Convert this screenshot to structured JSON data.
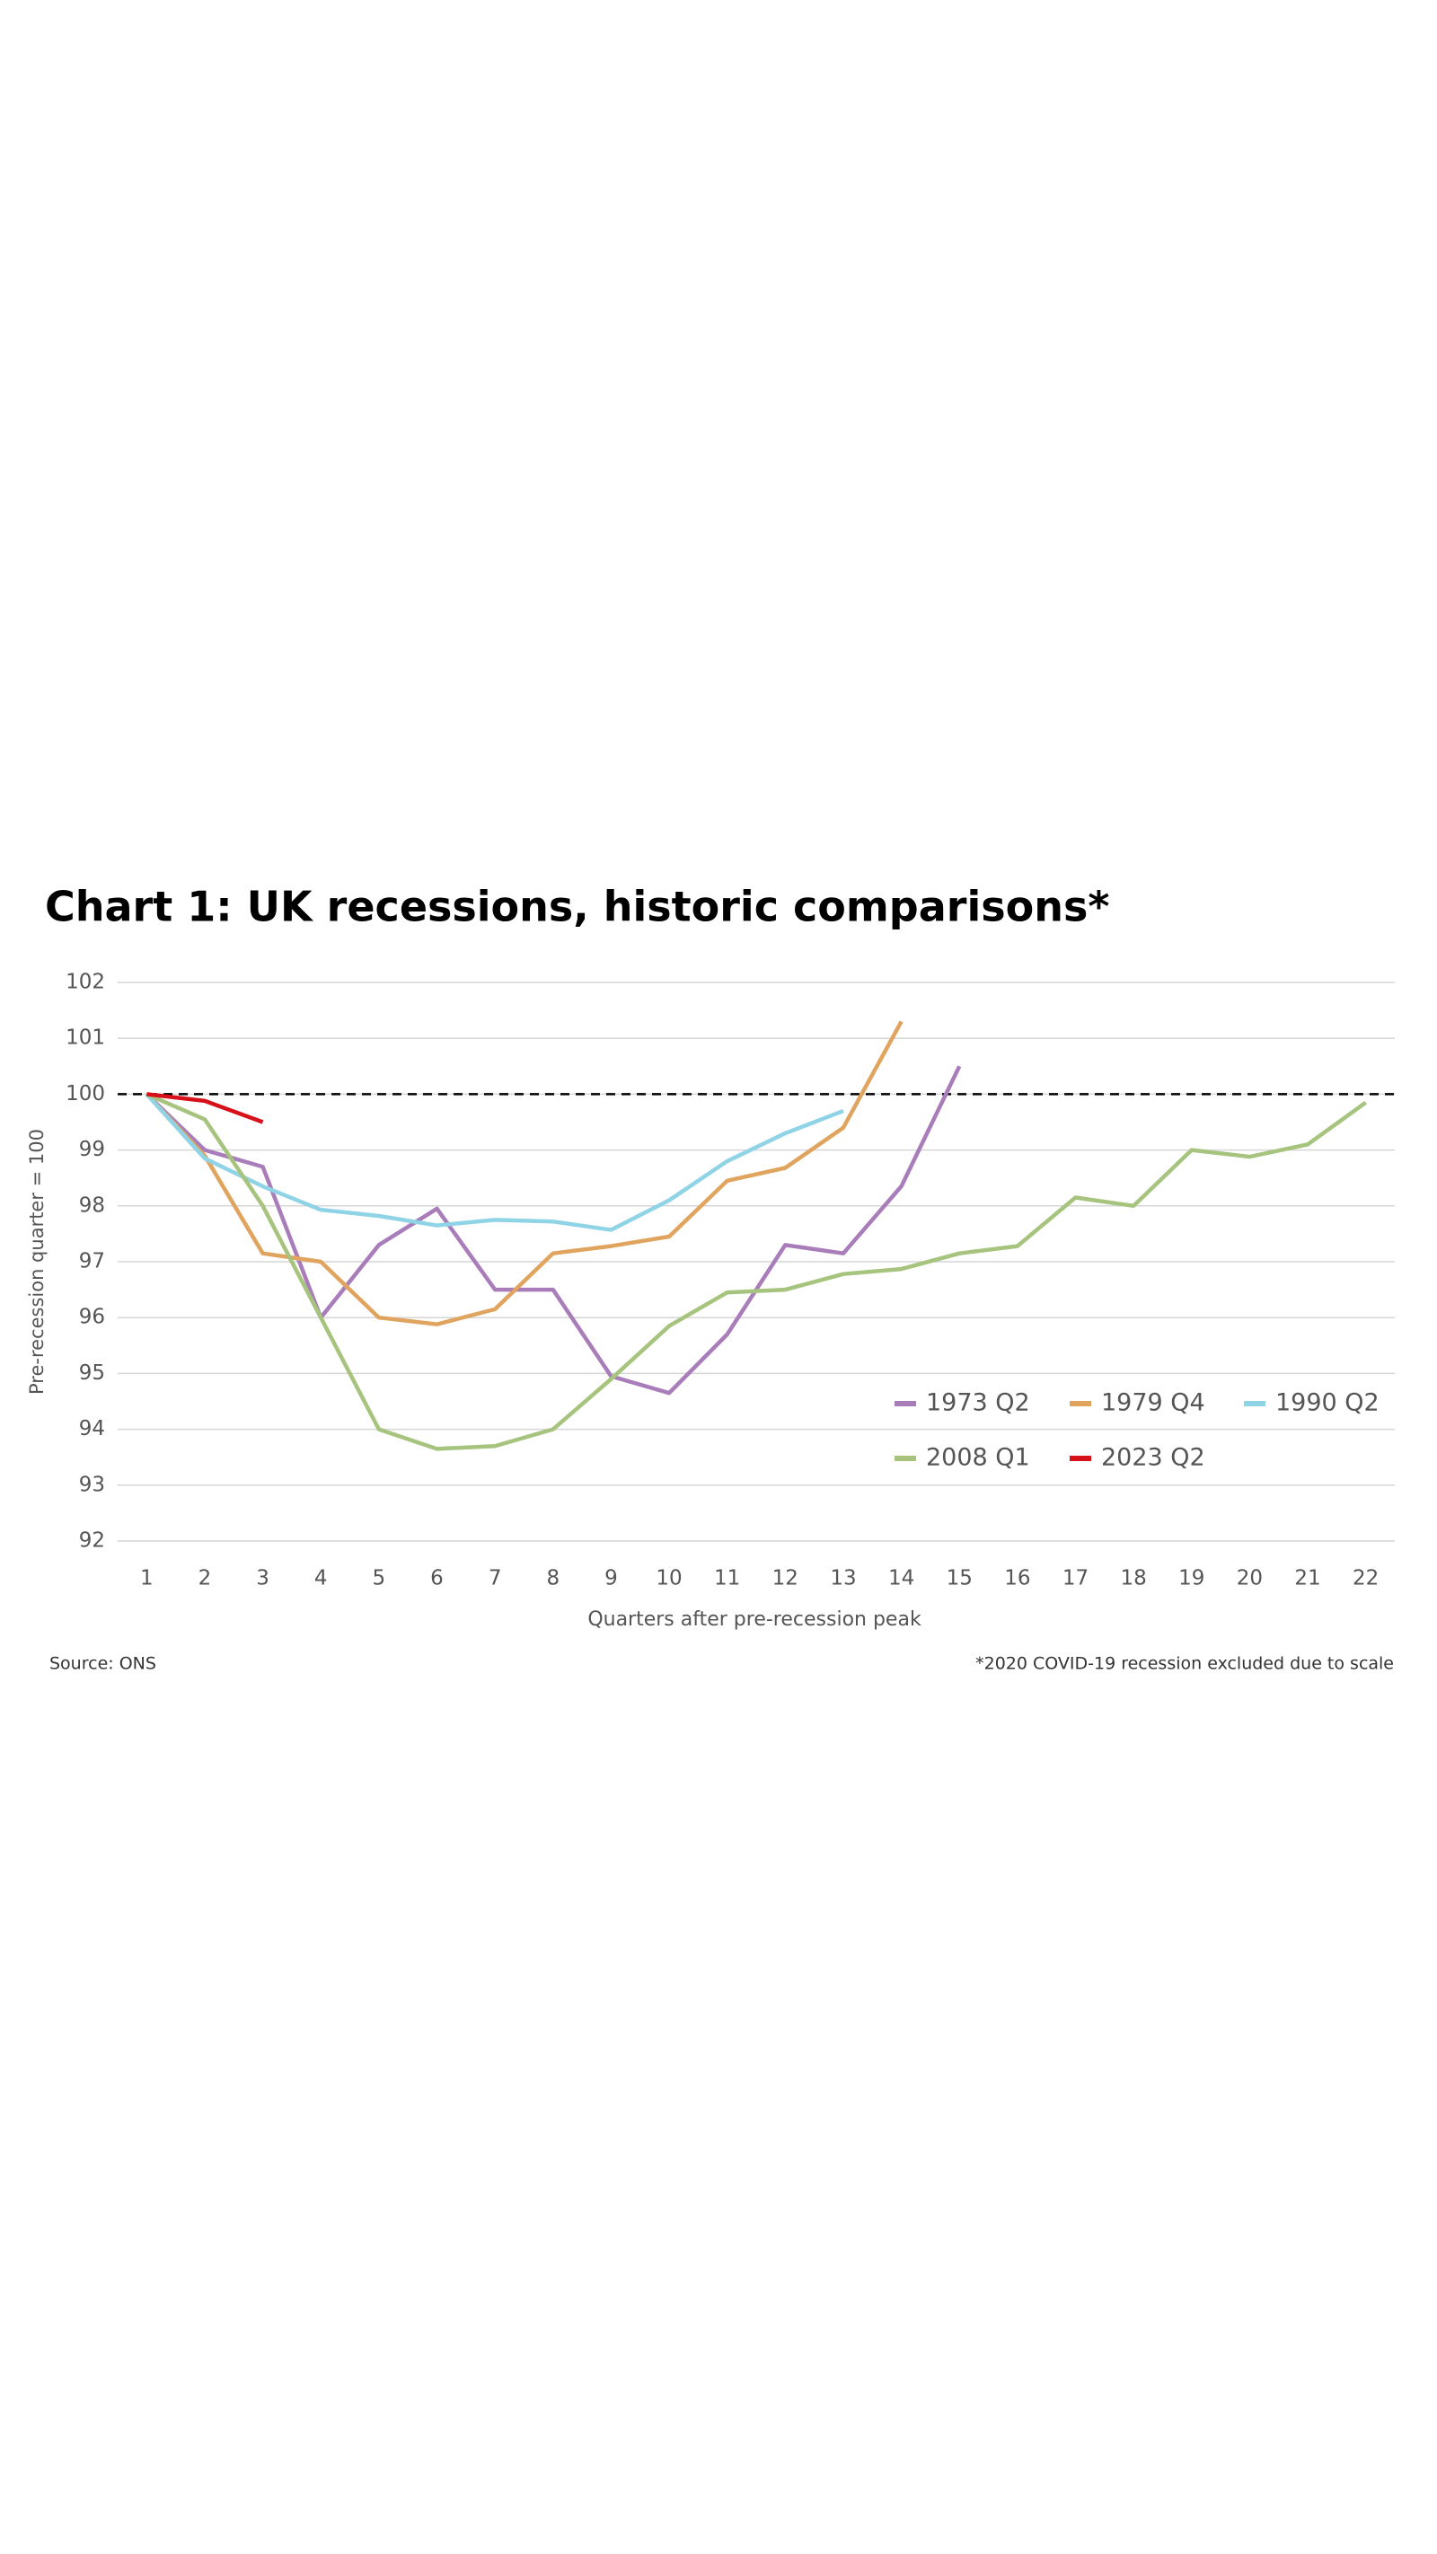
{
  "chart_data": {
    "type": "line",
    "title": "Chart 1: UK recessions, historic comparisons*",
    "ylabel": "Pre-recession quarter = 100",
    "xlabel": "Quarters after pre-recession peak",
    "source": "Source: ONS",
    "footnote": "*2020 COVID-19 recession excluded due to scale",
    "categories": [
      "1",
      "2",
      "3",
      "4",
      "5",
      "6",
      "7",
      "8",
      "9",
      "10",
      "11",
      "12",
      "13",
      "14",
      "15",
      "16",
      "17",
      "18",
      "19",
      "20",
      "21",
      "22"
    ],
    "series": [
      {
        "name": "1973 Q2",
        "color": "#a97dba",
        "values": [
          100,
          99.0,
          98.7,
          96.0,
          97.3,
          97.95,
          96.5,
          96.5,
          94.95,
          94.65,
          95.7,
          97.3,
          97.15,
          98.35,
          100.5,
          null,
          null,
          null,
          null,
          null,
          null,
          null
        ]
      },
      {
        "name": "1979 Q4",
        "color": "#e0a45f",
        "values": [
          100,
          98.9,
          97.15,
          97.0,
          96.0,
          95.88,
          96.15,
          97.15,
          97.28,
          97.45,
          98.45,
          98.68,
          99.4,
          101.3,
          null,
          null,
          null,
          null,
          null,
          null,
          null,
          null
        ]
      },
      {
        "name": "1990 Q2",
        "color": "#8fd3e6",
        "values": [
          100,
          98.85,
          98.35,
          97.93,
          97.82,
          97.65,
          97.75,
          97.72,
          97.57,
          98.1,
          98.8,
          99.3,
          99.7,
          null,
          null,
          null,
          null,
          null,
          null,
          null,
          null,
          null
        ]
      },
      {
        "name": "2008 Q1",
        "color": "#a6c47e",
        "values": [
          100,
          99.55,
          98.0,
          96.0,
          94.0,
          93.65,
          93.7,
          94.0,
          94.9,
          95.85,
          96.45,
          96.5,
          96.78,
          96.87,
          97.15,
          97.28,
          98.15,
          98.0,
          99.0,
          98.88,
          99.1,
          99.85
        ]
      },
      {
        "name": "2023 Q2",
        "color": "#d7101a",
        "values": [
          100,
          99.88,
          99.5,
          null,
          null,
          null,
          null,
          null,
          null,
          null,
          null,
          null,
          null,
          null,
          null,
          null,
          null,
          null,
          null,
          null,
          null,
          null
        ]
      }
    ],
    "reference_line": 100,
    "ylim": [
      92,
      102
    ],
    "yticks": [
      92,
      93,
      94,
      95,
      96,
      97,
      98,
      99,
      100,
      101,
      102
    ],
    "grid": true
  }
}
